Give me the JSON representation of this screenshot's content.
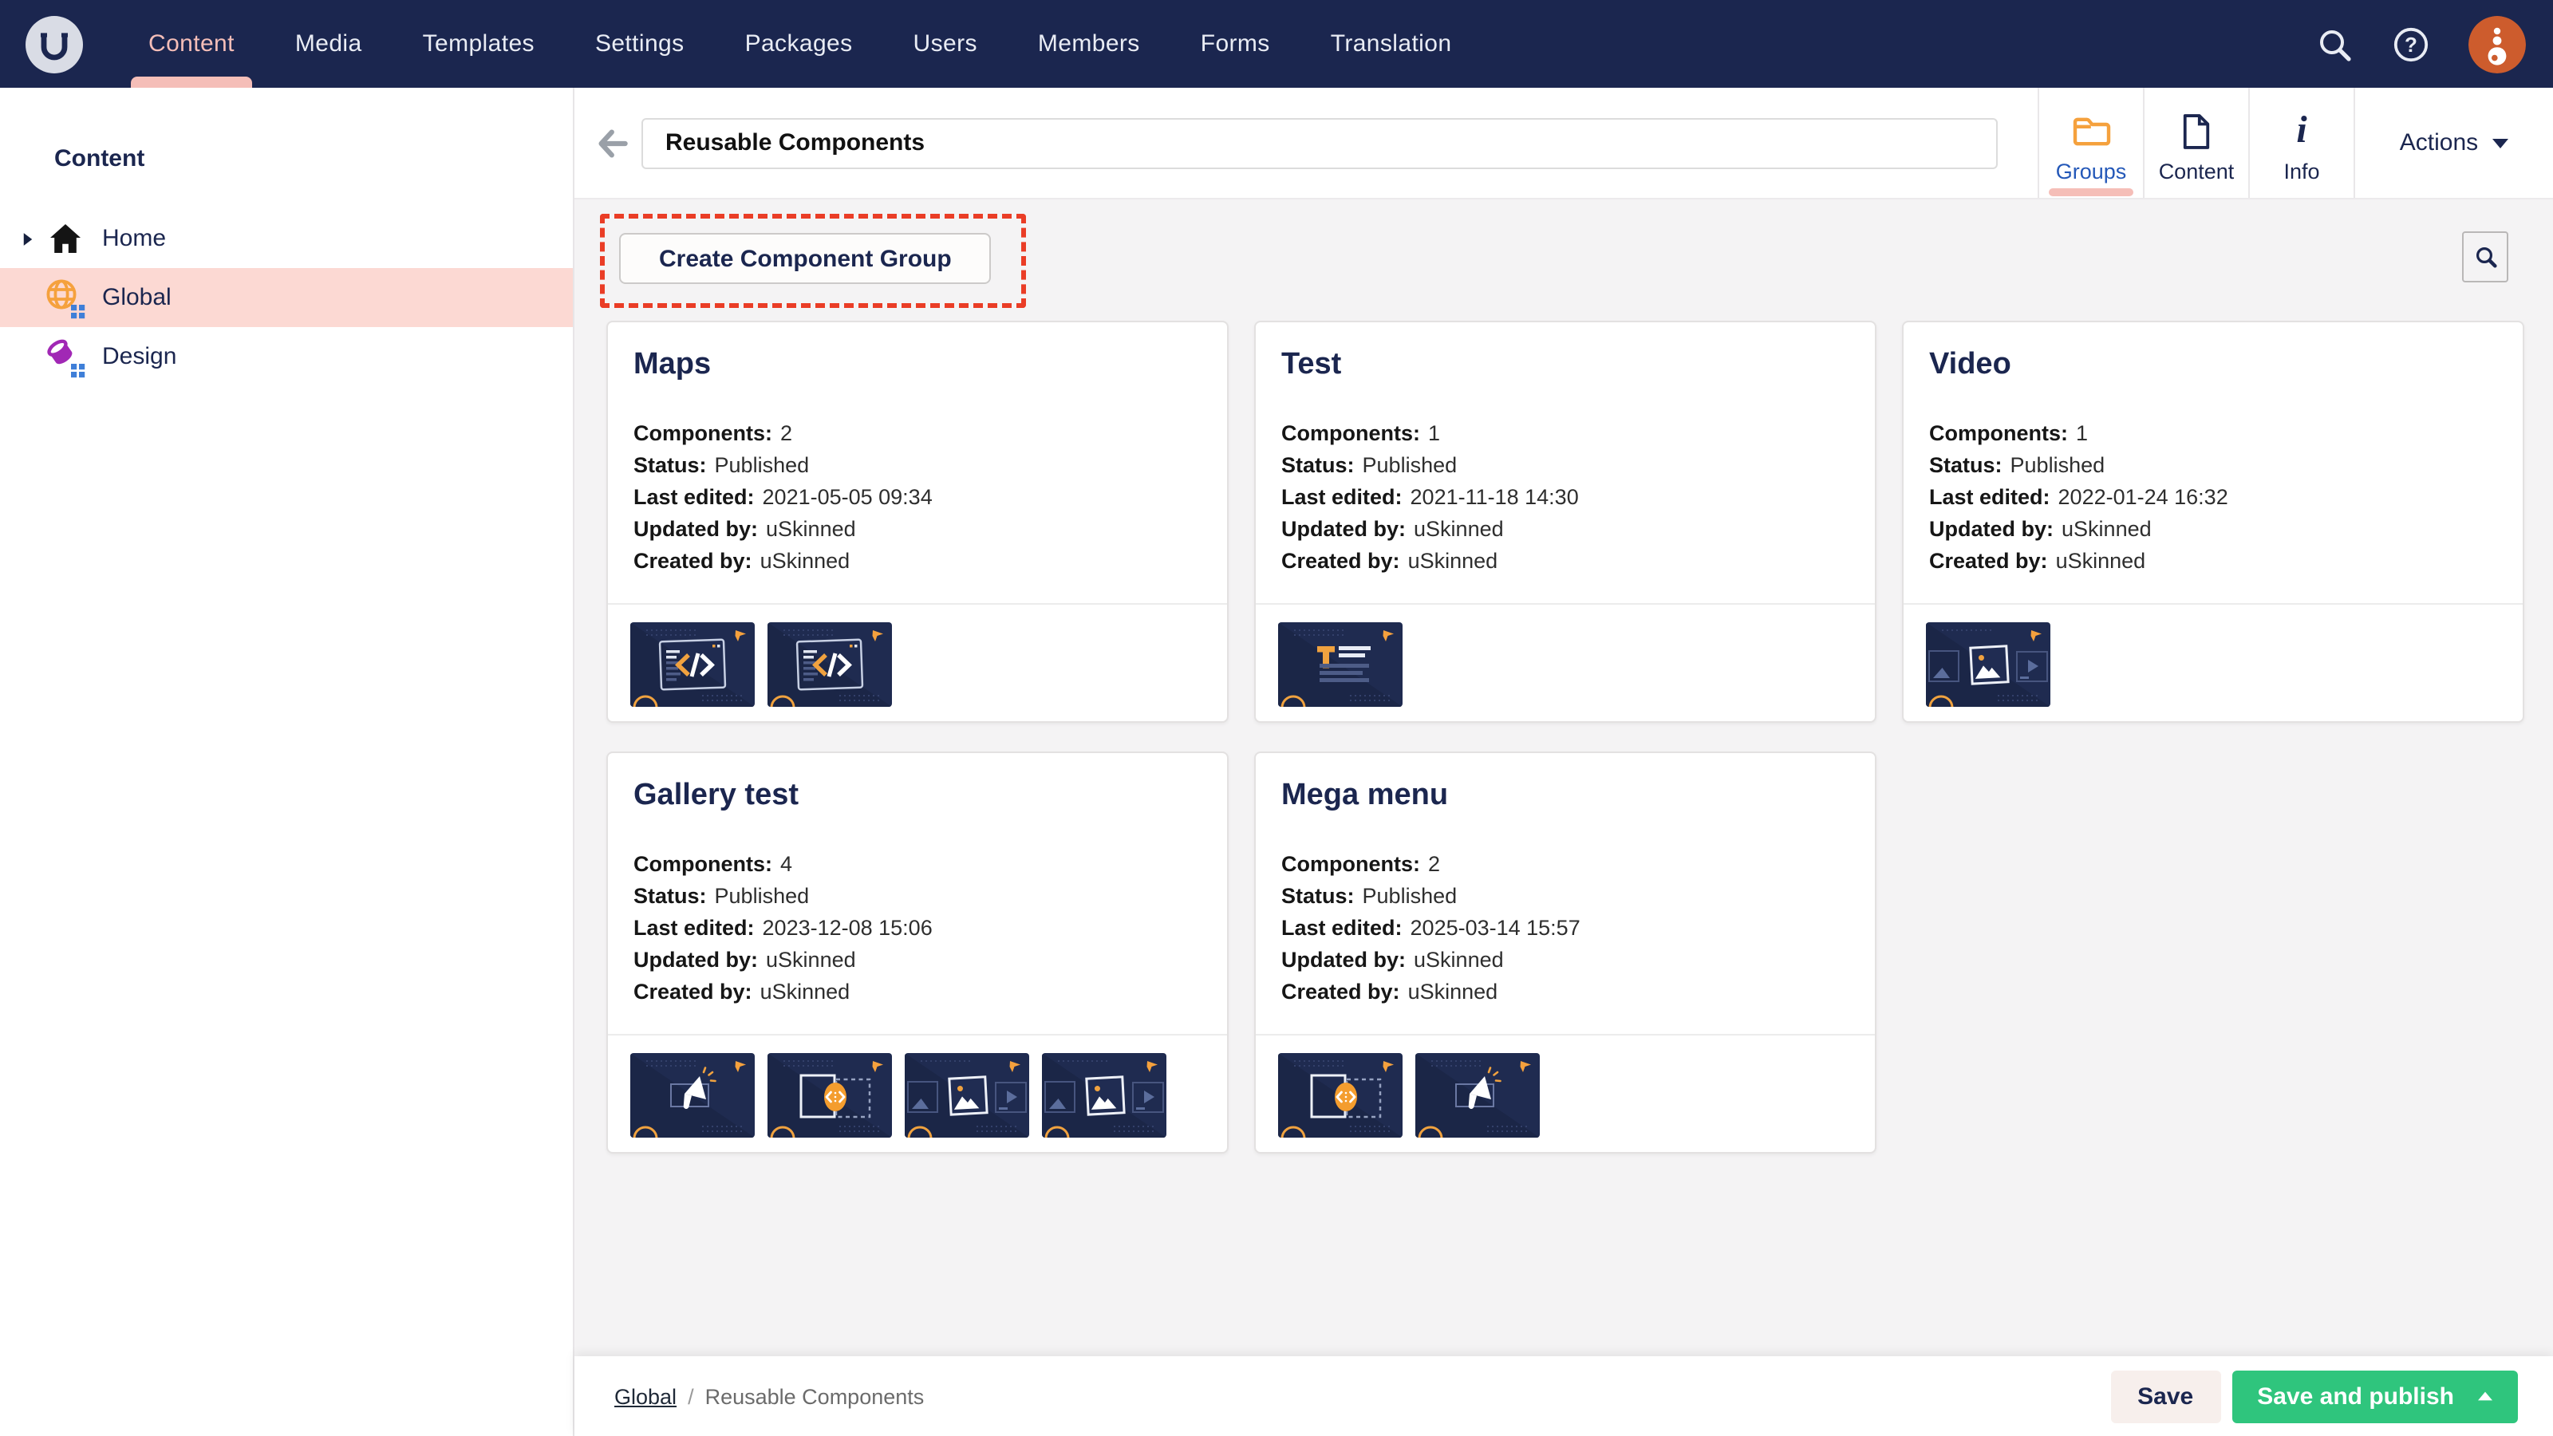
{
  "topnav": {
    "items": [
      {
        "label": "Content",
        "active": true
      },
      {
        "label": "Media"
      },
      {
        "label": "Templates"
      },
      {
        "label": "Settings"
      },
      {
        "label": "Packages"
      },
      {
        "label": "Users"
      },
      {
        "label": "Members"
      },
      {
        "label": "Forms"
      },
      {
        "label": "Translation"
      }
    ],
    "icons": {
      "logo": "umbraco-u-circle",
      "search": "magnifying-glass",
      "help": "question-mark-circle",
      "avatar": "orange-user-avatar"
    }
  },
  "sidebar": {
    "section_title": "Content",
    "items": [
      {
        "label": "Home",
        "icon": "home",
        "caret": true
      },
      {
        "label": "Global",
        "icon": "globe",
        "selected": true
      },
      {
        "label": "Design",
        "icon": "design"
      }
    ]
  },
  "header": {
    "title_value": "Reusable Components",
    "back_icon": "arrow-left",
    "tabs": [
      {
        "label": "Groups",
        "icon": "folder",
        "active": true
      },
      {
        "label": "Content",
        "icon": "document"
      },
      {
        "label": "Info",
        "icon": "info"
      }
    ],
    "actions_label": "Actions"
  },
  "toolbar": {
    "create_button_label": "Create Component Group",
    "search_icon": "magnifying-glass",
    "annotation": "red-dashed-highlight-around-create-button"
  },
  "card_meta_fields": [
    {
      "key": "components",
      "label": "Components:"
    },
    {
      "key": "status",
      "label": "Status:"
    },
    {
      "key": "last_edited",
      "label": "Last edited:"
    },
    {
      "key": "updated_by",
      "label": "Updated by:"
    },
    {
      "key": "created_by",
      "label": "Created by:"
    }
  ],
  "cards": [
    {
      "title": "Maps",
      "components": "2",
      "status": "Published",
      "last_edited": "2021-05-05 09:34",
      "updated_by": "uSkinned",
      "created_by": "uSkinned",
      "thumbnails": [
        "code",
        "code"
      ]
    },
    {
      "title": "Test",
      "components": "1",
      "status": "Published",
      "last_edited": "2021-11-18 14:30",
      "updated_by": "uSkinned",
      "created_by": "uSkinned",
      "thumbnails": [
        "text"
      ]
    },
    {
      "title": "Video",
      "components": "1",
      "status": "Published",
      "last_edited": "2022-01-24 16:32",
      "updated_by": "uSkinned",
      "created_by": "uSkinned",
      "thumbnails": [
        "image"
      ]
    },
    {
      "title": "Gallery test",
      "components": "4",
      "status": "Published",
      "last_edited": "2023-12-08 15:06",
      "updated_by": "uSkinned",
      "created_by": "uSkinned",
      "thumbnails": [
        "megaphone",
        "embed",
        "image",
        "image"
      ]
    },
    {
      "title": "Mega menu",
      "components": "2",
      "status": "Published",
      "last_edited": "2025-03-14 15:57",
      "updated_by": "uSkinned",
      "created_by": "uSkinned",
      "thumbnails": [
        "embed",
        "megaphone"
      ]
    }
  ],
  "footer": {
    "breadcrumb_root": "Global",
    "breadcrumb_separator": "/",
    "breadcrumb_current": "Reusable Components",
    "save_label": "Save",
    "save_publish_label": "Save and publish",
    "save_publish_caret": "caret-up"
  },
  "colors": {
    "nav_bg": "#1b264f",
    "accent_salmon": "#f5beb8",
    "selected_row_bg": "#fcd9d3",
    "accent_orange": "#f5a13d",
    "groups_tab_blue": "#2458b8",
    "publish_green": "#2fc57d",
    "annotation_red": "#ea3d26",
    "content_bg": "#f4f3f4",
    "navy_text": "#1b264f"
  }
}
